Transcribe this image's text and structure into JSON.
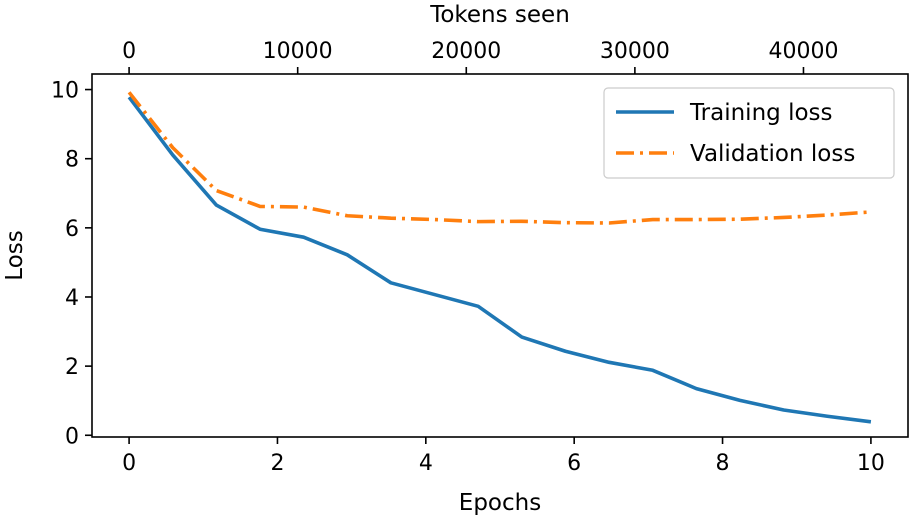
{
  "chart_data": {
    "type": "line",
    "title": "",
    "xlabel": "Epochs",
    "ylabel": "Loss",
    "top_xlabel": "Tokens seen",
    "xlim": [
      -0.5,
      10.5
    ],
    "ylim": [
      -0.05,
      10.45
    ],
    "top_xlim": [
      -2200,
      46200
    ],
    "x_ticks": [
      0,
      2,
      4,
      6,
      8,
      10
    ],
    "y_ticks": [
      0,
      2,
      4,
      6,
      8,
      10
    ],
    "top_ticks": [
      0,
      10000,
      20000,
      30000,
      40000
    ],
    "grid": false,
    "legend": {
      "position": "top-right",
      "entries": [
        "Training loss",
        "Validation loss"
      ]
    },
    "series": [
      {
        "name": "Training loss",
        "color": "#1f77b4",
        "style": "solid",
        "x": [
          0,
          0.588,
          1.176,
          1.765,
          2.353,
          2.941,
          3.529,
          4.118,
          4.706,
          5.294,
          5.882,
          6.471,
          7.059,
          7.647,
          8.235,
          8.824,
          9.412,
          10
        ],
        "values": [
          9.78,
          8.11,
          6.66,
          5.96,
          5.73,
          5.22,
          4.41,
          4.07,
          3.73,
          2.84,
          2.43,
          2.11,
          1.88,
          1.35,
          1.01,
          0.73,
          0.55,
          0.39
        ]
      },
      {
        "name": "Validation loss",
        "color": "#ff7f0e",
        "style": "dashdot",
        "x": [
          0,
          0.588,
          1.176,
          1.765,
          2.353,
          2.941,
          3.529,
          4.118,
          4.706,
          5.294,
          5.882,
          6.471,
          7.059,
          7.647,
          8.235,
          8.824,
          9.412,
          10
        ],
        "values": [
          9.92,
          8.32,
          7.08,
          6.62,
          6.6,
          6.35,
          6.28,
          6.24,
          6.18,
          6.19,
          6.15,
          6.14,
          6.24,
          6.24,
          6.25,
          6.3,
          6.37,
          6.46
        ]
      }
    ]
  }
}
